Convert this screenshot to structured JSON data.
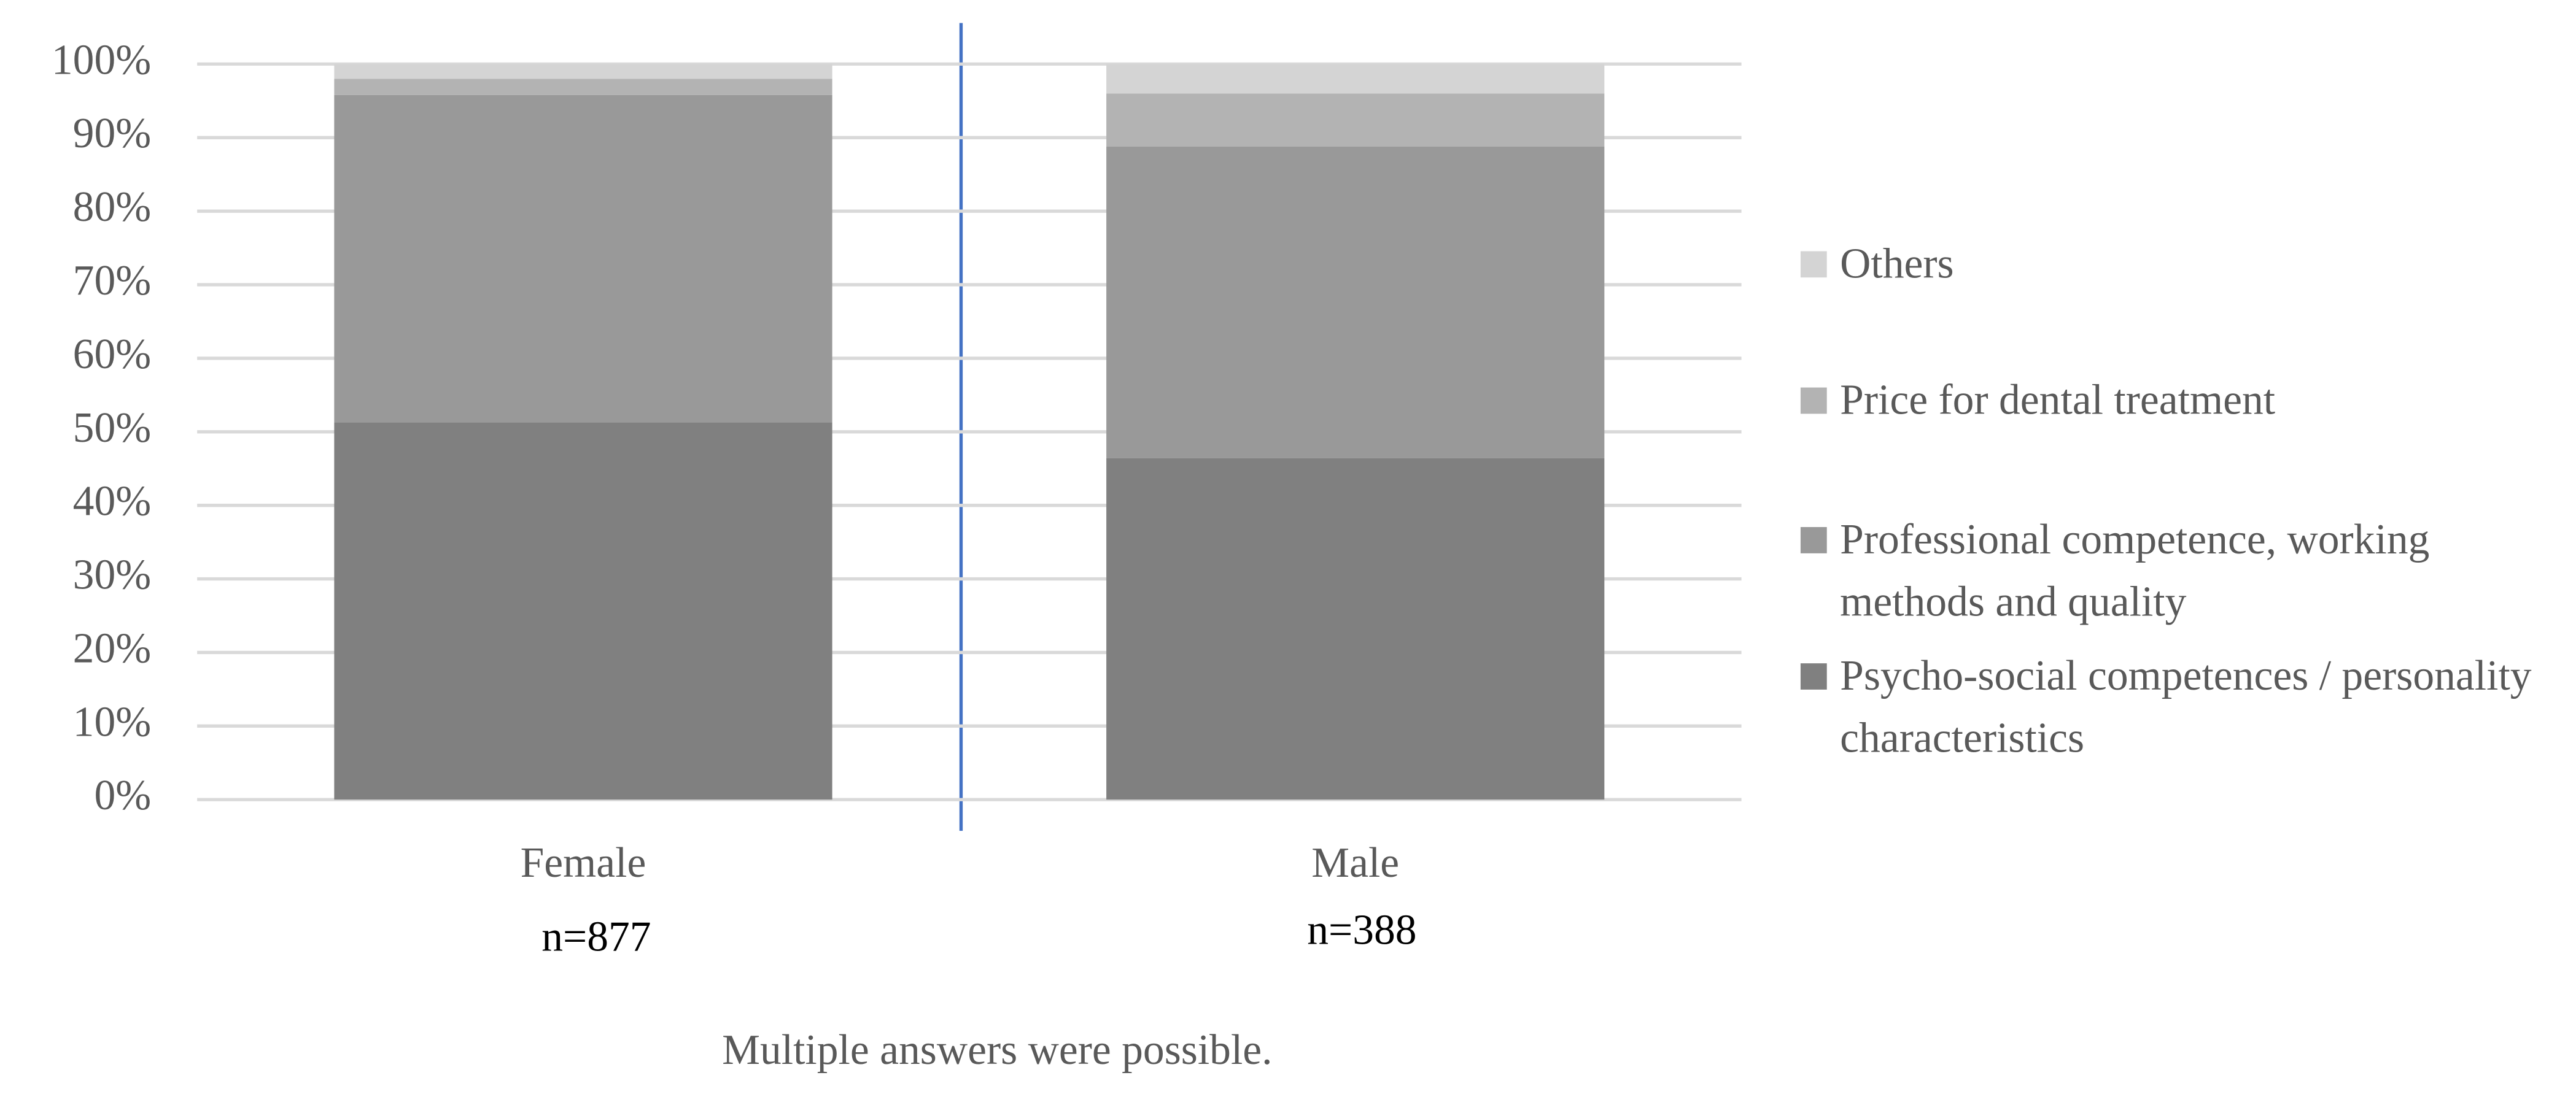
{
  "chart_data": {
    "type": "stacked_bar",
    "categories": [
      "Female",
      "Male"
    ],
    "series": [
      {
        "name": "Psycho-social competences / personality characteristics",
        "color": "#808080",
        "values": [
          51.3,
          46.4
        ]
      },
      {
        "name": "Professional competence, working methods and quality",
        "color": "#999999",
        "values": [
          44.5,
          42.4
        ]
      },
      {
        "name": "Price for dental treatment",
        "color": "#b3b3b3",
        "values": [
          2.2,
          7.2
        ]
      },
      {
        "name": "Others",
        "color": "#d4d4d4",
        "values": [
          2.0,
          4.0
        ]
      }
    ],
    "ylim": [
      0,
      100
    ],
    "yticks": [
      {
        "value": 0,
        "label": "0%"
      },
      {
        "value": 10,
        "label": "10%"
      },
      {
        "value": 20,
        "label": "20%"
      },
      {
        "value": 30,
        "label": "30%"
      },
      {
        "value": 40,
        "label": "40%"
      },
      {
        "value": 50,
        "label": "50%"
      },
      {
        "value": 60,
        "label": "60%"
      },
      {
        "value": 70,
        "label": "70%"
      },
      {
        "value": 80,
        "label": "80%"
      },
      {
        "value": 90,
        "label": "90%"
      },
      {
        "value": 100,
        "label": "100%"
      }
    ],
    "grid": true,
    "legend": "right",
    "sample_labels": [
      "n=877",
      "n=388"
    ],
    "note": "Multiple answers were possible."
  }
}
